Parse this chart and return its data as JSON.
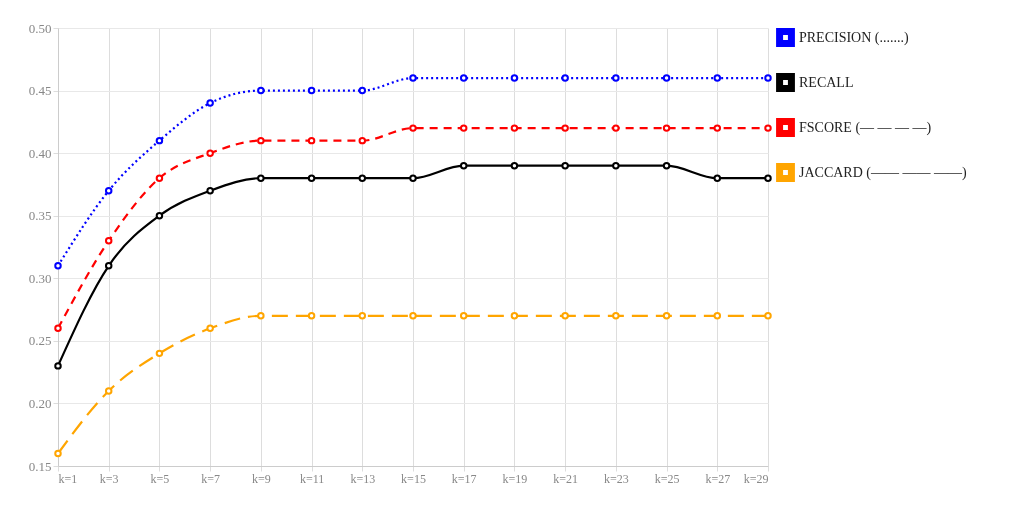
{
  "chart_data": {
    "type": "line",
    "categories": [
      "k=1",
      "k=3",
      "k=5",
      "k=7",
      "k=9",
      "k=11",
      "k=13",
      "k=15",
      "k=17",
      "k=19",
      "k=21",
      "k=23",
      "k=25",
      "k=27",
      "k=29"
    ],
    "series": [
      {
        "name": "PRECISION (.......)",
        "color": "#0000ff",
        "line_style": "dotted",
        "values": [
          0.31,
          0.37,
          0.41,
          0.44,
          0.45,
          0.45,
          0.45,
          0.46,
          0.46,
          0.46,
          0.46,
          0.46,
          0.46,
          0.46,
          0.46
        ]
      },
      {
        "name": "RECALL",
        "color": "#000000",
        "line_style": "solid",
        "values": [
          0.23,
          0.31,
          0.35,
          0.37,
          0.38,
          0.38,
          0.38,
          0.38,
          0.39,
          0.39,
          0.39,
          0.39,
          0.39,
          0.38,
          0.38
        ]
      },
      {
        "name": "FSCORE (— — — —)",
        "color": "#ff0000",
        "line_style": "dashed",
        "values": [
          0.26,
          0.33,
          0.38,
          0.4,
          0.41,
          0.41,
          0.41,
          0.42,
          0.42,
          0.42,
          0.42,
          0.42,
          0.42,
          0.42,
          0.42
        ]
      },
      {
        "name": "JACCARD (—— —— ——)",
        "color": "#ffa500",
        "line_style": "dashed",
        "values": [
          0.16,
          0.21,
          0.24,
          0.26,
          0.27,
          0.27,
          0.27,
          0.27,
          0.27,
          0.27,
          0.27,
          0.27,
          0.27,
          0.27,
          0.27
        ]
      }
    ],
    "ylim": [
      0.15,
      0.5
    ],
    "yticks": [
      {
        "value": 0.15,
        "label": "0.15"
      },
      {
        "value": 0.2,
        "label": "0.20"
      },
      {
        "value": 0.25,
        "label": "0.25"
      },
      {
        "value": 0.3,
        "label": "0.30"
      },
      {
        "value": 0.35,
        "label": "0.35"
      },
      {
        "value": 0.4,
        "label": "0.40"
      },
      {
        "value": 0.45,
        "label": "0.45"
      },
      {
        "value": 0.5,
        "label": "0.50"
      }
    ],
    "grid": true,
    "legend": "top right",
    "marker": "circle"
  }
}
